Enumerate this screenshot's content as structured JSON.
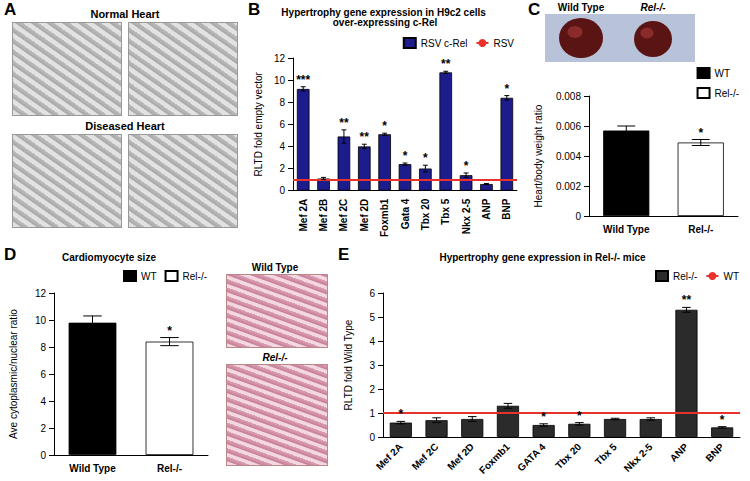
{
  "panel_a": {
    "panel": "A",
    "titles": [
      "Normal Heart",
      "Diseased Heart"
    ]
  },
  "chart_data": [
    {
      "type": "bar",
      "panel": "B",
      "title": "Hypertrophy gene expression in H9c2 cells over-expressing c-Rel",
      "y_label": "RLTD fold empty vector",
      "categories": [
        "Mef 2A",
        "Mef 2B",
        "Mef 2C",
        "Mef 2D",
        "Foxmb1",
        "Gata 4",
        "Tbx 20",
        "Tbx 5",
        "Nkx 2-5",
        "ANP",
        "BNP"
      ],
      "series": [
        {
          "name": "RSV c-Rel",
          "color": "#1c1c8c",
          "values": [
            9.2,
            1.1,
            4.9,
            4.0,
            5.1,
            2.4,
            2.0,
            10.7,
            1.4,
            0.6,
            8.4
          ],
          "errors": [
            0.2,
            0.1,
            0.6,
            0.2,
            0.1,
            0.1,
            0.3,
            0.1,
            0.2,
            0.05,
            0.2
          ],
          "significance": [
            "***",
            null,
            "**",
            "**",
            "*",
            "*",
            "*",
            "**",
            "*",
            null,
            "*"
          ]
        },
        {
          "name": "RSV",
          "type": "line",
          "color": "#e8322b",
          "reference_value": 1
        }
      ],
      "ylim": [
        0,
        12
      ],
      "yticks": [
        0,
        2,
        4,
        6,
        8,
        10,
        12
      ],
      "legend": "top-right",
      "grid": false
    },
    {
      "type": "bar",
      "panel": "C",
      "image_labels": [
        "Wild Type",
        "Rel-/-"
      ],
      "y_label": "Heart/body weight ratio",
      "categories": [
        "Wild Type",
        "Rel-/-"
      ],
      "series": [
        {
          "name": "WT",
          "color": "#000000",
          "values": [
            0.0057,
            null
          ],
          "errors": [
            0.0003,
            null
          ],
          "significance": [
            null,
            null
          ]
        },
        {
          "name": "Rel-/-",
          "color": "#ffffff",
          "values": [
            null,
            0.0049
          ],
          "errors": [
            null,
            0.0002
          ],
          "significance": [
            null,
            "*"
          ]
        }
      ],
      "ylim": [
        0,
        0.008
      ],
      "yticks": [
        0,
        0.002,
        0.004,
        0.006,
        0.008
      ],
      "legend": "top-right",
      "grid": false
    },
    {
      "type": "bar",
      "panel": "D",
      "title": "Cardiomyocyte size",
      "image_labels": [
        "Wild Type",
        "Rel-/-"
      ],
      "y_label": "Ave cytoplasmic/nuclear ratio",
      "categories": [
        "Wild Type",
        "Rel-/-"
      ],
      "series": [
        {
          "name": "WT",
          "color": "#000000",
          "values": [
            9.8,
            null
          ],
          "errors": [
            0.5,
            null
          ],
          "significance": [
            null,
            null
          ]
        },
        {
          "name": "Rel-/-",
          "color": "#ffffff",
          "values": [
            null,
            8.4
          ],
          "errors": [
            null,
            0.3
          ],
          "significance": [
            null,
            "*"
          ]
        }
      ],
      "ylim": [
        0,
        12
      ],
      "yticks": [
        0,
        2,
        4,
        6,
        8,
        10,
        12
      ],
      "legend": "top-right",
      "grid": false
    },
    {
      "type": "bar",
      "panel": "E",
      "title": "Hypertrophy gene expression in Rel-/- mice",
      "y_label": "RLTD fold Wild Type",
      "categories": [
        "Mef 2A",
        "Mef 2C",
        "Mef 2D",
        "Foxmb1",
        "GATA 4",
        "Tbx 20",
        "Tbx 5",
        "Nkx 2-5",
        "ANP",
        "BNP"
      ],
      "series": [
        {
          "name": "Rel-/-",
          "color": "#2b2b2b",
          "values": [
            0.6,
            0.7,
            0.75,
            1.3,
            0.5,
            0.55,
            0.75,
            0.75,
            5.3,
            0.4
          ],
          "errors": [
            0.05,
            0.1,
            0.1,
            0.1,
            0.05,
            0.05,
            0.03,
            0.05,
            0.1,
            0.03
          ],
          "significance": [
            "*",
            null,
            null,
            null,
            "*",
            "*",
            null,
            null,
            "**",
            "*"
          ]
        },
        {
          "name": "WT",
          "type": "line",
          "color": "#e8322b",
          "reference_value": 1
        }
      ],
      "ylim": [
        0,
        6
      ],
      "yticks": [
        0,
        1,
        2,
        3,
        4,
        5,
        6
      ],
      "legend": "top-right",
      "grid": false
    }
  ]
}
